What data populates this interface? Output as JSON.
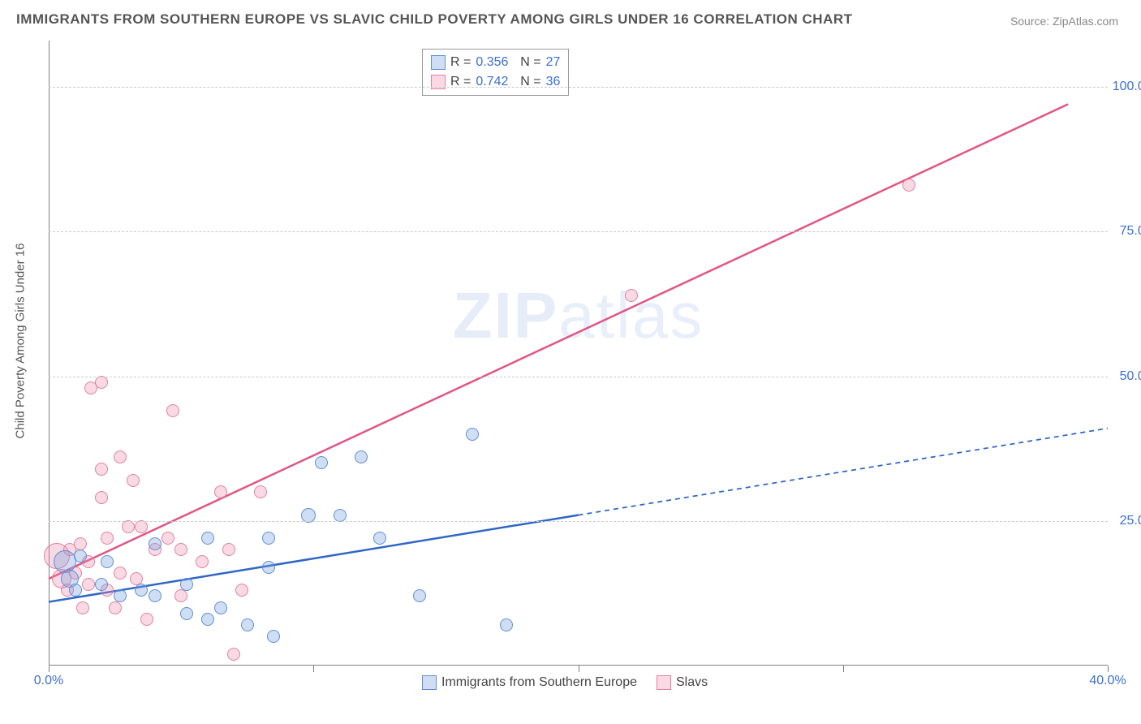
{
  "title": "IMMIGRANTS FROM SOUTHERN EUROPE VS SLAVIC CHILD POVERTY AMONG GIRLS UNDER 16 CORRELATION CHART",
  "source_label": "Source: ZipAtlas.com",
  "ylabel": "Child Poverty Among Girls Under 16",
  "watermark_a": "ZIP",
  "watermark_b": "atlas",
  "chart": {
    "type": "scatter",
    "background_color": "#ffffff",
    "grid_color": "#cccccc",
    "axis_color": "#808080",
    "xlim": [
      0,
      40
    ],
    "ylim": [
      0,
      108
    ],
    "xtick_positions": [
      0,
      10,
      20,
      30,
      40
    ],
    "xtick_labels": [
      "0.0%",
      "",
      "",
      "",
      "40.0%"
    ],
    "ytick_positions": [
      25,
      50,
      75,
      100
    ],
    "ytick_labels": [
      "25.0%",
      "50.0%",
      "75.0%",
      "100.0%"
    ],
    "marker_radius": 8,
    "series": [
      {
        "name": "Immigrants from Southern Europe",
        "fill": "rgba(120,160,220,0.35)",
        "stroke": "#5d8fd8",
        "line_color": "#2f66c6",
        "line_width": 2.5,
        "trend": {
          "x1": 0,
          "y1": 11,
          "x2": 40,
          "y2": 41,
          "solid_until_x": 20
        },
        "R": "0.356",
        "N": "27",
        "points": [
          {
            "x": 0.6,
            "y": 18,
            "r": 14
          },
          {
            "x": 0.8,
            "y": 15,
            "r": 11
          },
          {
            "x": 1.0,
            "y": 13
          },
          {
            "x": 1.2,
            "y": 19
          },
          {
            "x": 2.2,
            "y": 18
          },
          {
            "x": 2.0,
            "y": 14
          },
          {
            "x": 2.7,
            "y": 12
          },
          {
            "x": 3.5,
            "y": 13
          },
          {
            "x": 4.0,
            "y": 21
          },
          {
            "x": 4.0,
            "y": 12
          },
          {
            "x": 5.2,
            "y": 14
          },
          {
            "x": 5.2,
            "y": 9
          },
          {
            "x": 6.0,
            "y": 22
          },
          {
            "x": 6.0,
            "y": 8
          },
          {
            "x": 6.5,
            "y": 10
          },
          {
            "x": 7.5,
            "y": 7
          },
          {
            "x": 8.3,
            "y": 22
          },
          {
            "x": 8.3,
            "y": 17
          },
          {
            "x": 8.5,
            "y": 5
          },
          {
            "x": 9.8,
            "y": 26,
            "r": 9
          },
          {
            "x": 10.3,
            "y": 35
          },
          {
            "x": 11.0,
            "y": 26
          },
          {
            "x": 11.8,
            "y": 36
          },
          {
            "x": 12.5,
            "y": 22
          },
          {
            "x": 14.0,
            "y": 12
          },
          {
            "x": 16.0,
            "y": 40
          },
          {
            "x": 17.3,
            "y": 7
          }
        ]
      },
      {
        "name": "Slavs",
        "fill": "rgba(235,140,170,0.32)",
        "stroke": "#e47fa2",
        "line_color": "#e25584",
        "line_width": 2.5,
        "trend": {
          "x1": 0,
          "y1": 15,
          "x2": 38.5,
          "y2": 97,
          "solid_until_x": 38.5
        },
        "R": "0.742",
        "N": "36",
        "points": [
          {
            "x": 0.3,
            "y": 19,
            "r": 16
          },
          {
            "x": 0.5,
            "y": 15,
            "r": 12
          },
          {
            "x": 0.7,
            "y": 13
          },
          {
            "x": 0.8,
            "y": 20
          },
          {
            "x": 1.0,
            "y": 16
          },
          {
            "x": 1.2,
            "y": 21
          },
          {
            "x": 1.3,
            "y": 10
          },
          {
            "x": 1.5,
            "y": 18
          },
          {
            "x": 1.5,
            "y": 14
          },
          {
            "x": 1.6,
            "y": 48
          },
          {
            "x": 2.0,
            "y": 49
          },
          {
            "x": 2.0,
            "y": 34
          },
          {
            "x": 2.0,
            "y": 29
          },
          {
            "x": 2.2,
            "y": 22
          },
          {
            "x": 2.2,
            "y": 13
          },
          {
            "x": 2.5,
            "y": 10
          },
          {
            "x": 2.7,
            "y": 36
          },
          {
            "x": 2.7,
            "y": 16
          },
          {
            "x": 3.0,
            "y": 24
          },
          {
            "x": 3.2,
            "y": 32
          },
          {
            "x": 3.3,
            "y": 15
          },
          {
            "x": 3.5,
            "y": 24
          },
          {
            "x": 3.7,
            "y": 8
          },
          {
            "x": 4.0,
            "y": 20
          },
          {
            "x": 4.5,
            "y": 22
          },
          {
            "x": 4.7,
            "y": 44
          },
          {
            "x": 5.0,
            "y": 12
          },
          {
            "x": 5.0,
            "y": 20
          },
          {
            "x": 5.8,
            "y": 18
          },
          {
            "x": 6.5,
            "y": 30
          },
          {
            "x": 6.8,
            "y": 20
          },
          {
            "x": 7.0,
            "y": 2
          },
          {
            "x": 7.3,
            "y": 13
          },
          {
            "x": 8.0,
            "y": 30
          },
          {
            "x": 22.0,
            "y": 64
          },
          {
            "x": 32.5,
            "y": 83
          }
        ]
      }
    ]
  },
  "legend_bottom_labels": [
    "Immigrants from Southern Europe",
    "Slavs"
  ]
}
